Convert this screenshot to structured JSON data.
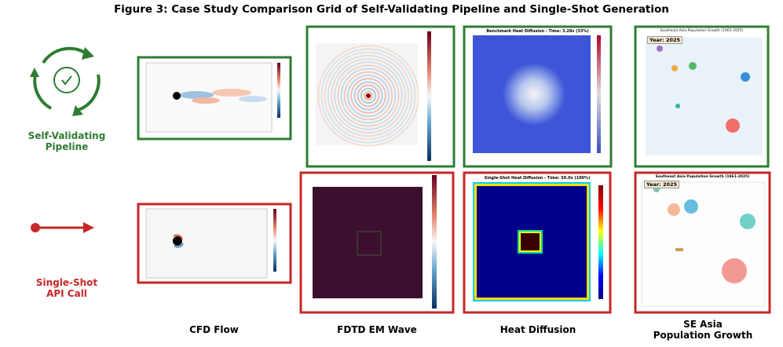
{
  "title": "Figure 3: Case Study Comparison Grid of Self-Validating Pipeline and Single-Shot Generation",
  "rows": [
    {
      "label": "Self-Validating\nPipeline"
    },
    {
      "label": "Single-Shot\nAPI Call"
    }
  ],
  "columns": [
    {
      "label": "CFD Flow"
    },
    {
      "label": "FDTD EM Wave"
    },
    {
      "label": "Heat Diffusion"
    },
    {
      "label": "SE Asia\nPopulation Growth"
    }
  ],
  "panels": {
    "heat_top_title": "Benchmark Heat Diffusion - Time: 3.28s (33%)",
    "heat_bottom_title": "Single-Shot Heat Diffusion - Time: 50.0s (100%)",
    "pop_top_title": "Southeast Asia Population Growth (1961-2025)",
    "pop_top_year": "Year: 2025",
    "pop_bottom_title": "Southeast Asia Population Growth (1961-2025)",
    "pop_bottom_year": "Year: 2025"
  }
}
